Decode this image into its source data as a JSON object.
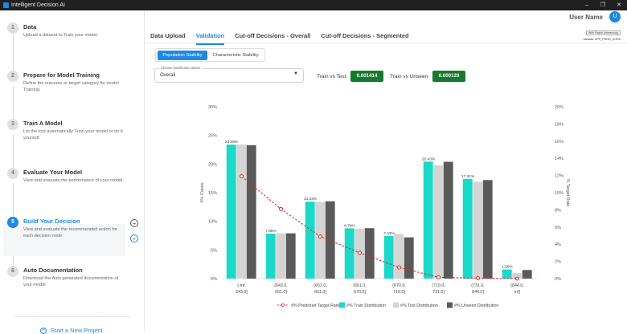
{
  "app": {
    "title": "Intelligent Decision AI",
    "controls": [
      "–",
      "❐",
      "✕"
    ]
  },
  "header": {
    "user_name": "User Name",
    "avatar_initial": "U"
  },
  "steps": [
    {
      "num": "1",
      "title": "Data",
      "desc": "Upload a dataset to Train your model."
    },
    {
      "num": "2",
      "title": "Prepare for Model Training",
      "desc": "Define the outcome or target category for model Training."
    },
    {
      "num": "3",
      "title": "Train A Model",
      "desc": "Let the tool automatically Train your model or do it yourself."
    },
    {
      "num": "4",
      "title": "Evaluate Your Model",
      "desc": "View and evaluate the performance of your model."
    },
    {
      "num": "5",
      "title": "Build Your Decision",
      "desc": "View and evaluate the recommended action for each decision node"
    },
    {
      "num": "6",
      "title": "Auto Documentation",
      "desc": "Download the Auto generated documentation of your model"
    }
  ],
  "sidebar": {
    "new_project": "Start a New Project"
  },
  "tabs": [
    "Data Upload",
    "Validation",
    "Cut-off Decisions - Overall",
    "Cut-off Decisions - Segmented"
  ],
  "toggles": {
    "population": "Population Stability",
    "characteristic": "Characteristic Stability"
  },
  "ribbon": {
    "tag": "With Reject Inferencing",
    "variable": "Variable: APP_PROD_CODE"
  },
  "select": {
    "legend": "Choose Distribution option",
    "value": "Overall"
  },
  "metrics": {
    "train_test_label": "Train vs Test:",
    "train_test_value": "0.001414",
    "train_unseen_label": "Train vs Unseen:",
    "train_unseen_value": "0.000129"
  },
  "colors": {
    "accent": "#1e88e5",
    "train": "#1bd9c8",
    "test": "#d4d4d4",
    "unseen": "#5a5a5a",
    "rate": "#e0242a",
    "badge": "#157a2c"
  },
  "chart_data": {
    "type": "bar",
    "categories": [
      "(-inf, 643.0]",
      "(643.0, 651.0]",
      "(651.0, 661.0]",
      "(661.0, 670.0]",
      "(670.0, 710.0]",
      "(710.0, 731.0]",
      "(731.0, 844.0]",
      "(844.0, inf]"
    ],
    "series": [
      {
        "name": "#% Train Distribution",
        "values": [
          23.39,
          7.85,
          13.43,
          8.78,
          7.43,
          20.43,
          17.41,
          1.59
        ]
      },
      {
        "name": "#% Test Distribution",
        "values": [
          23.4,
          7.9,
          13.4,
          8.7,
          7.8,
          19.8,
          16.9,
          1.0
        ]
      },
      {
        "name": "#% Unseen Distribution",
        "values": [
          23.3,
          7.9,
          13.5,
          8.8,
          7.2,
          20.4,
          17.2,
          1.5
        ]
      }
    ],
    "line": {
      "name": "#% Predicted Target Rate",
      "values": [
        11.9,
        8.1,
        4.9,
        3.0,
        1.3,
        0.15,
        0.05,
        0.0
      ]
    },
    "data_labels": [
      "23.39%",
      "7.85%",
      "13.43%",
      "8.78%",
      "7.43%",
      "20.43%",
      "17.41%",
      "1.59%"
    ],
    "ylabel": "#% Cases",
    "ylabel_right": "% Target Rate",
    "ylim": [
      0,
      30
    ],
    "ylim_right": [
      0,
      20
    ],
    "yticks": [
      "0%",
      "5%",
      "10%",
      "15%",
      "20%",
      "25%",
      "30%"
    ],
    "yticks_right": [
      "0%",
      "2%",
      "4%",
      "6%",
      "8%",
      "10%",
      "12%",
      "14%",
      "16%",
      "18%",
      "20%"
    ],
    "legend": "bottom",
    "grid": false
  }
}
